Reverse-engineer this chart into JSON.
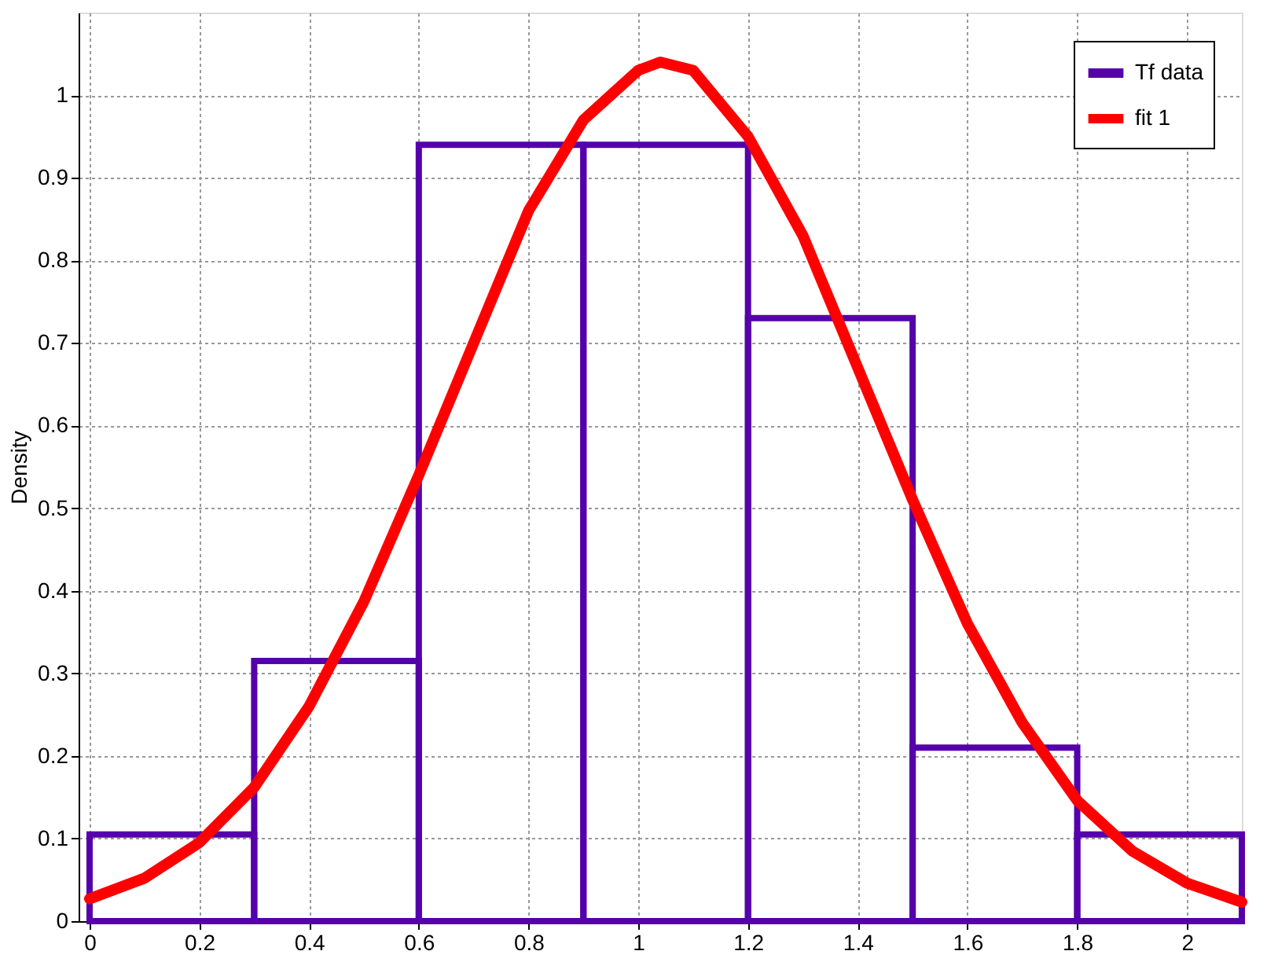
{
  "chart_data": {
    "type": "histogram",
    "ylabel": "Density",
    "bins": [
      0,
      0.3,
      0.6,
      0.9,
      1.2,
      1.5,
      1.8,
      2.1
    ],
    "series": [
      {
        "name": "Tf data",
        "color": "#5500aa",
        "values": [
          0.105,
          0.315,
          0.94,
          0.94,
          0.73,
          0.21,
          0.105
        ]
      },
      {
        "name": "fit 1",
        "type": "line",
        "color": "#ff0000",
        "x": [
          0,
          0.1,
          0.2,
          0.3,
          0.4,
          0.5,
          0.6,
          0.7,
          0.8,
          0.9,
          1.0,
          1.04,
          1.1,
          1.2,
          1.3,
          1.4,
          1.5,
          1.6,
          1.7,
          1.8,
          1.9,
          2.0,
          2.1
        ],
        "values": [
          0.027,
          0.052,
          0.095,
          0.162,
          0.26,
          0.387,
          0.54,
          0.7,
          0.86,
          0.97,
          1.03,
          1.04,
          1.03,
          0.95,
          0.83,
          0.67,
          0.51,
          0.36,
          0.24,
          0.146,
          0.085,
          0.046,
          0.023
        ]
      }
    ],
    "xlim": [
      -0.02,
      2.1
    ],
    "ylim": [
      0,
      1.1
    ],
    "xticks": [
      0,
      0.2,
      0.4,
      0.6,
      0.8,
      1,
      1.2,
      1.4,
      1.6,
      1.8,
      2
    ],
    "yticks": [
      0,
      0.1,
      0.2,
      0.3,
      0.4,
      0.5,
      0.6,
      0.7,
      0.8,
      0.9,
      1
    ],
    "grid": true,
    "legend": "top right",
    "marker": "none",
    "line_style": "solid"
  }
}
